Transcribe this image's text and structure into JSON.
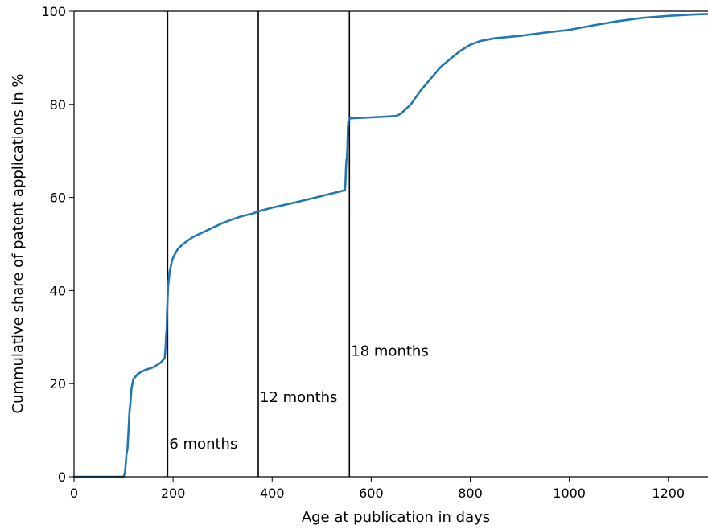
{
  "chart_data": {
    "type": "line",
    "xlabel": "Age at publication in days",
    "ylabel": "Cummulative share of patent applications in %",
    "xlim": [
      0,
      1280
    ],
    "ylim": [
      0,
      100
    ],
    "xticks": [
      0,
      200,
      400,
      600,
      800,
      1000,
      1200
    ],
    "yticks": [
      0,
      20,
      40,
      60,
      80,
      100
    ],
    "grid": false,
    "legend": "none",
    "colors": {
      "line": "#1f77b4",
      "vline": "#000000"
    },
    "series": [
      {
        "x": [
          0,
          100,
          103,
          106,
          108,
          110,
          112,
          114,
          116,
          118,
          120,
          124,
          128,
          135,
          145,
          160,
          175,
          183,
          185,
          186,
          187,
          188,
          189,
          190,
          191,
          192,
          193,
          195,
          198,
          202,
          210,
          220,
          240,
          260,
          280,
          300,
          320,
          340,
          360,
          372,
          400,
          450,
          500,
          545,
          547,
          548,
          549,
          550,
          551,
          552,
          553,
          554,
          556,
          558,
          600,
          650,
          660,
          680,
          700,
          720,
          740,
          760,
          780,
          800,
          820,
          850,
          900,
          950,
          1000,
          1010,
          1050,
          1100,
          1150,
          1200,
          1250,
          1280
        ],
        "y": [
          0,
          0,
          1,
          5,
          6,
          10,
          14,
          16,
          19,
          20,
          21,
          21.5,
          22,
          22.5,
          23,
          23.5,
          24.5,
          25.5,
          28,
          30.5,
          31.5,
          36,
          38.5,
          41,
          42,
          43,
          44,
          45,
          46.5,
          47.5,
          49,
          50,
          51.5,
          52.5,
          53.5,
          54.5,
          55.3,
          56,
          56.5,
          57,
          57.8,
          59,
          60.3,
          61.5,
          61.5,
          63,
          66,
          68,
          68.5,
          71,
          75,
          76.5,
          76.8,
          77,
          77.2,
          77.5,
          78,
          80,
          83,
          85.5,
          88,
          89.8,
          91.5,
          92.8,
          93.6,
          94.2,
          94.7,
          95.4,
          96.0,
          96.2,
          97.0,
          97.9,
          98.6,
          99.0,
          99.3,
          99.4
        ]
      }
    ],
    "vlines": [
      {
        "x": 189,
        "label": "6 months",
        "label_y": 5
      },
      {
        "x": 372,
        "label": "12 months",
        "label_y": 15
      },
      {
        "x": 556,
        "label": "18 months",
        "label_y": 25
      }
    ]
  }
}
